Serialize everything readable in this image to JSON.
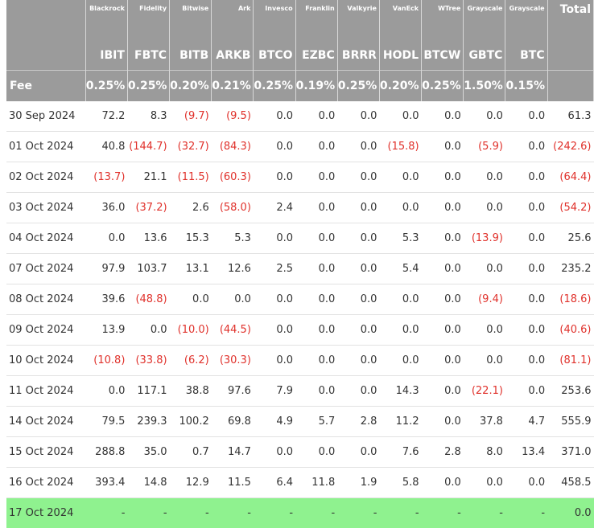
{
  "table": {
    "fee_label": "Fee",
    "total_label": "Total",
    "issuers": [
      "Blackrock",
      "Fidelity",
      "Bitwise",
      "Ark",
      "Invesco",
      "Franklin",
      "Valkyrie",
      "VanEck",
      "WTree",
      "Grayscale",
      "Grayscale"
    ],
    "tickers": [
      "IBIT",
      "FBTC",
      "BITB",
      "ARKB",
      "BTCO",
      "EZBC",
      "BRRR",
      "HODL",
      "BTCW",
      "GBTC",
      "BTC"
    ],
    "fees": [
      "0.25%",
      "0.25%",
      "0.20%",
      "0.21%",
      "0.25%",
      "0.19%",
      "0.25%",
      "0.20%",
      "0.25%",
      "1.50%",
      "0.15%"
    ],
    "rows": [
      {
        "date": "30 Sep 2024",
        "values": [
          "72.2",
          "8.3",
          "(9.7)",
          "(9.5)",
          "0.0",
          "0.0",
          "0.0",
          "0.0",
          "0.0",
          "0.0",
          "0.0"
        ],
        "total": "61.3"
      },
      {
        "date": "01 Oct 2024",
        "values": [
          "40.8",
          "(144.7)",
          "(32.7)",
          "(84.3)",
          "0.0",
          "0.0",
          "0.0",
          "(15.8)",
          "0.0",
          "(5.9)",
          "0.0"
        ],
        "total": "(242.6)"
      },
      {
        "date": "02 Oct 2024",
        "values": [
          "(13.7)",
          "21.1",
          "(11.5)",
          "(60.3)",
          "0.0",
          "0.0",
          "0.0",
          "0.0",
          "0.0",
          "0.0",
          "0.0"
        ],
        "total": "(64.4)"
      },
      {
        "date": "03 Oct 2024",
        "values": [
          "36.0",
          "(37.2)",
          "2.6",
          "(58.0)",
          "2.4",
          "0.0",
          "0.0",
          "0.0",
          "0.0",
          "0.0",
          "0.0"
        ],
        "total": "(54.2)"
      },
      {
        "date": "04 Oct 2024",
        "values": [
          "0.0",
          "13.6",
          "15.3",
          "5.3",
          "0.0",
          "0.0",
          "0.0",
          "5.3",
          "0.0",
          "(13.9)",
          "0.0"
        ],
        "total": "25.6"
      },
      {
        "date": "07 Oct 2024",
        "values": [
          "97.9",
          "103.7",
          "13.1",
          "12.6",
          "2.5",
          "0.0",
          "0.0",
          "5.4",
          "0.0",
          "0.0",
          "0.0"
        ],
        "total": "235.2"
      },
      {
        "date": "08 Oct 2024",
        "values": [
          "39.6",
          "(48.8)",
          "0.0",
          "0.0",
          "0.0",
          "0.0",
          "0.0",
          "0.0",
          "0.0",
          "(9.4)",
          "0.0"
        ],
        "total": "(18.6)"
      },
      {
        "date": "09 Oct 2024",
        "values": [
          "13.9",
          "0.0",
          "(10.0)",
          "(44.5)",
          "0.0",
          "0.0",
          "0.0",
          "0.0",
          "0.0",
          "0.0",
          "0.0"
        ],
        "total": "(40.6)"
      },
      {
        "date": "10 Oct 2024",
        "values": [
          "(10.8)",
          "(33.8)",
          "(6.2)",
          "(30.3)",
          "0.0",
          "0.0",
          "0.0",
          "0.0",
          "0.0",
          "0.0",
          "0.0"
        ],
        "total": "(81.1)"
      },
      {
        "date": "11 Oct 2024",
        "values": [
          "0.0",
          "117.1",
          "38.8",
          "97.6",
          "7.9",
          "0.0",
          "0.0",
          "14.3",
          "0.0",
          "(22.1)",
          "0.0"
        ],
        "total": "253.6"
      },
      {
        "date": "14 Oct 2024",
        "values": [
          "79.5",
          "239.3",
          "100.2",
          "69.8",
          "4.9",
          "5.7",
          "2.8",
          "11.2",
          "0.0",
          "37.8",
          "4.7"
        ],
        "total": "555.9"
      },
      {
        "date": "15 Oct 2024",
        "values": [
          "288.8",
          "35.0",
          "0.7",
          "14.7",
          "0.0",
          "0.0",
          "0.0",
          "7.6",
          "2.8",
          "8.0",
          "13.4"
        ],
        "total": "371.0"
      },
      {
        "date": "16 Oct 2024",
        "values": [
          "393.4",
          "14.8",
          "12.9",
          "11.5",
          "6.4",
          "11.8",
          "1.9",
          "5.8",
          "0.0",
          "0.0",
          "0.0"
        ],
        "total": "458.5"
      },
      {
        "date": "17 Oct 2024",
        "values": [
          "-",
          "-",
          "-",
          "-",
          "-",
          "-",
          "-",
          "-",
          "-",
          "-",
          "-"
        ],
        "total": "0.0"
      }
    ],
    "colors": {
      "header_bg": "#9b9b9b",
      "negative": "#e0312b",
      "highlight_row": "#8ff28f"
    }
  }
}
